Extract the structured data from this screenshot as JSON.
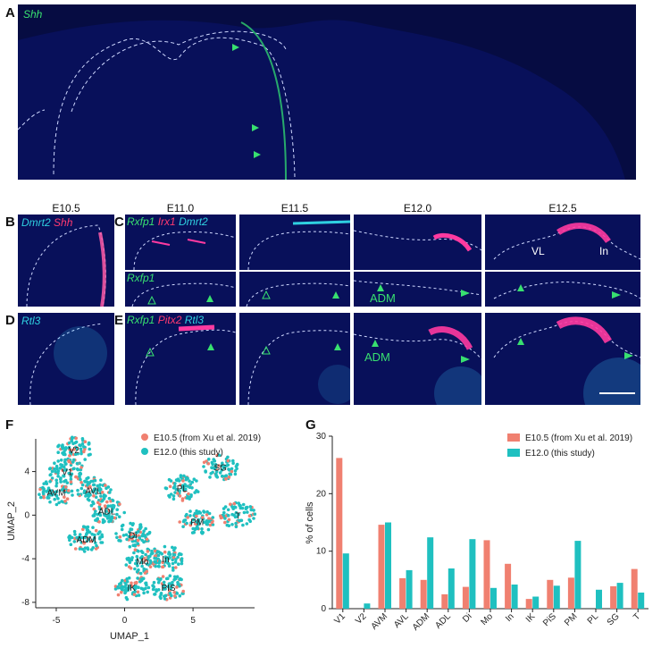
{
  "panels": {
    "A": {
      "label": "A",
      "stain": "Shh"
    },
    "B": {
      "label": "B",
      "stain_1": "Dmrt2",
      "stain_2": "Shh"
    },
    "C": {
      "label": "C",
      "stain_1": "Rxfp1",
      "stain_2": "Irx1",
      "stain_3": "Dmrt2",
      "stain_lower": "Rxfp1"
    },
    "D": {
      "label": "D",
      "stain": "Rtl3"
    },
    "E": {
      "label": "E",
      "stain_1": "Rxfp1",
      "stain_2": "Pitx2",
      "stain_3": "Rtl3"
    },
    "F": {
      "label": "F"
    },
    "G": {
      "label": "G"
    }
  },
  "stages": [
    "E10.5",
    "E11.0",
    "E11.5",
    "E12.0",
    "E12.5"
  ],
  "annotations": {
    "adm": "ADM",
    "vl": "VL",
    "in": "In"
  },
  "colors": {
    "e105": "#f08070",
    "e120": "#1fc0c0",
    "nuclear": "#08105a",
    "green_stain": "#38e070",
    "red_stain": "#ff3aa0"
  },
  "umap": {
    "legend": [
      "E10.5 (from Xu et al. 2019)",
      "E12.0 (this study)"
    ],
    "xlabel": "UMAP_1",
    "ylabel": "UMAP_2",
    "xticks": [
      -5,
      0,
      5
    ],
    "yticks": [
      4,
      0,
      -4,
      -8
    ],
    "clusters": [
      {
        "name": "V2",
        "x": -3.7,
        "y": 6.0
      },
      {
        "name": "V1",
        "x": -4.2,
        "y": 4.0
      },
      {
        "name": "AVM",
        "x": -5.0,
        "y": 2.1
      },
      {
        "name": "AVL",
        "x": -2.3,
        "y": 2.3
      },
      {
        "name": "ADL",
        "x": -1.3,
        "y": 0.4
      },
      {
        "name": "ADM",
        "x": -2.8,
        "y": -2.2
      },
      {
        "name": "Di",
        "x": 0.6,
        "y": -1.8
      },
      {
        "name": "Mo",
        "x": 1.3,
        "y": -4.2
      },
      {
        "name": "In",
        "x": 3.0,
        "y": -4.0
      },
      {
        "name": "IK",
        "x": 0.5,
        "y": -6.6
      },
      {
        "name": "PIS",
        "x": 3.2,
        "y": -6.6
      },
      {
        "name": "PL",
        "x": 4.2,
        "y": 2.5
      },
      {
        "name": "PM",
        "x": 5.3,
        "y": -0.6
      },
      {
        "name": "SG",
        "x": 7.0,
        "y": 4.4
      },
      {
        "name": "T",
        "x": 8.3,
        "y": 0.0
      }
    ]
  },
  "chart_data": {
    "type": "bar",
    "categories": [
      "V1",
      "V2",
      "AVM",
      "AVL",
      "ADM",
      "ADL",
      "Di",
      "Mo",
      "In",
      "IK",
      "PiS",
      "PM",
      "PL",
      "SG",
      "T"
    ],
    "series": [
      {
        "name": "E10.5 (from Xu et al. 2019)",
        "values": [
          26.2,
          0,
          14.6,
          5.3,
          5.0,
          2.5,
          3.8,
          11.9,
          7.8,
          1.7,
          5.0,
          5.4,
          0,
          3.9,
          6.9
        ]
      },
      {
        "name": "E12.0 (this study)",
        "values": [
          9.6,
          0.9,
          15.0,
          6.7,
          12.4,
          7.0,
          12.1,
          3.6,
          4.2,
          2.1,
          4.0,
          11.8,
          3.3,
          4.5,
          2.8
        ]
      }
    ],
    "ylabel": "% of cells",
    "ylim": [
      0,
      30
    ],
    "yticks": [
      0,
      10,
      20,
      30
    ],
    "legend": "top-right"
  }
}
